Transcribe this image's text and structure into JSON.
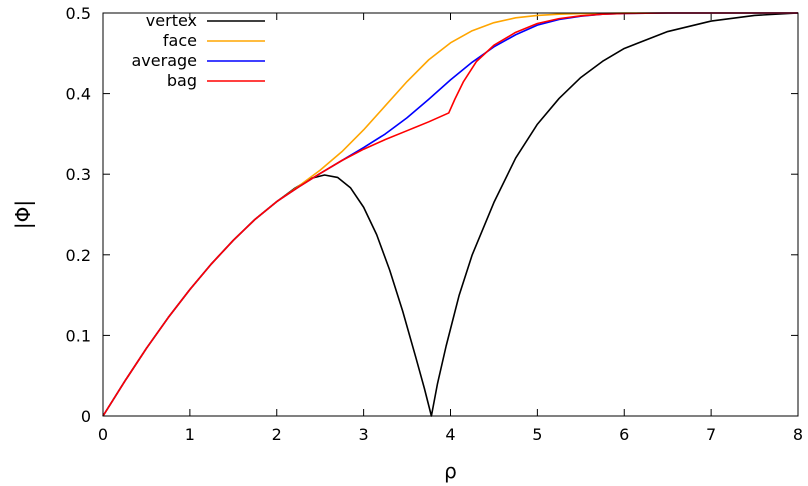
{
  "chart_data": {
    "type": "line",
    "title": "",
    "xlabel": "ρ",
    "ylabel": "|Φ|",
    "xlim": [
      0,
      8
    ],
    "ylim": [
      0,
      0.5
    ],
    "xticks": [
      0,
      1,
      2,
      3,
      4,
      5,
      6,
      7,
      8
    ],
    "xtick_labels": [
      "0",
      "1",
      "2",
      "3",
      "4",
      "5",
      "6",
      "7",
      "8"
    ],
    "yticks": [
      0,
      0.1,
      0.2,
      0.3,
      0.4,
      0.5
    ],
    "ytick_labels": [
      "0",
      "0.1",
      "0.2",
      "0.3",
      "0.4",
      "0.5"
    ],
    "grid": false,
    "legend_position": "top-left",
    "series": [
      {
        "name": "vertex",
        "color": "#000000",
        "x": [
          0,
          0.25,
          0.5,
          0.75,
          1.0,
          1.25,
          1.5,
          1.75,
          2.0,
          2.2,
          2.4,
          2.55,
          2.7,
          2.85,
          3.0,
          3.15,
          3.3,
          3.45,
          3.6,
          3.7,
          3.78,
          3.85,
          3.95,
          4.1,
          4.25,
          4.5,
          4.75,
          5.0,
          5.25,
          5.5,
          5.75,
          6.0,
          6.5,
          7.0,
          7.5,
          8.0
        ],
        "y": [
          0,
          0.043,
          0.084,
          0.122,
          0.157,
          0.189,
          0.218,
          0.244,
          0.266,
          0.282,
          0.295,
          0.299,
          0.296,
          0.283,
          0.259,
          0.225,
          0.181,
          0.13,
          0.073,
          0.034,
          0.0,
          0.04,
          0.087,
          0.15,
          0.2,
          0.265,
          0.32,
          0.362,
          0.394,
          0.42,
          0.44,
          0.456,
          0.477,
          0.49,
          0.497,
          0.5
        ]
      },
      {
        "name": "face",
        "color": "#ffa500",
        "x": [
          0,
          0.25,
          0.5,
          0.75,
          1.0,
          1.25,
          1.5,
          1.75,
          2.0,
          2.25,
          2.5,
          2.75,
          3.0,
          3.25,
          3.5,
          3.75,
          4.0,
          4.25,
          4.5,
          4.75,
          5.0,
          5.25,
          5.5,
          5.75,
          6.0,
          6.5,
          7.0,
          8.0
        ],
        "y": [
          0,
          0.043,
          0.084,
          0.122,
          0.157,
          0.189,
          0.218,
          0.244,
          0.266,
          0.285,
          0.305,
          0.328,
          0.355,
          0.385,
          0.415,
          0.442,
          0.463,
          0.478,
          0.488,
          0.494,
          0.497,
          0.4985,
          0.4993,
          0.4997,
          0.4999,
          0.5,
          0.5,
          0.5
        ]
      },
      {
        "name": "average",
        "color": "#0000ff",
        "x": [
          0,
          0.25,
          0.5,
          0.75,
          1.0,
          1.25,
          1.5,
          1.75,
          2.0,
          2.25,
          2.5,
          2.75,
          3.0,
          3.25,
          3.5,
          3.75,
          4.0,
          4.25,
          4.5,
          4.75,
          5.0,
          5.25,
          5.5,
          5.75,
          6.0,
          6.5,
          7.0,
          8.0
        ],
        "y": [
          0,
          0.043,
          0.084,
          0.122,
          0.157,
          0.189,
          0.218,
          0.244,
          0.266,
          0.284,
          0.301,
          0.317,
          0.333,
          0.35,
          0.37,
          0.393,
          0.417,
          0.439,
          0.458,
          0.473,
          0.485,
          0.492,
          0.496,
          0.4985,
          0.4995,
          0.5,
          0.5,
          0.5
        ]
      },
      {
        "name": "bag",
        "color": "#ff0000",
        "x": [
          0,
          0.25,
          0.5,
          0.75,
          1.0,
          1.25,
          1.5,
          1.75,
          2.0,
          2.25,
          2.5,
          2.75,
          3.0,
          3.25,
          3.5,
          3.75,
          3.98,
          4.05,
          4.15,
          4.3,
          4.5,
          4.75,
          5.0,
          5.25,
          5.5,
          5.75,
          6.0,
          6.5,
          7.0,
          8.0
        ],
        "y": [
          0,
          0.043,
          0.084,
          0.122,
          0.157,
          0.189,
          0.218,
          0.244,
          0.266,
          0.284,
          0.301,
          0.317,
          0.331,
          0.343,
          0.354,
          0.365,
          0.376,
          0.393,
          0.415,
          0.44,
          0.46,
          0.476,
          0.487,
          0.493,
          0.4965,
          0.4985,
          0.4995,
          0.5,
          0.5,
          0.5
        ]
      }
    ]
  }
}
